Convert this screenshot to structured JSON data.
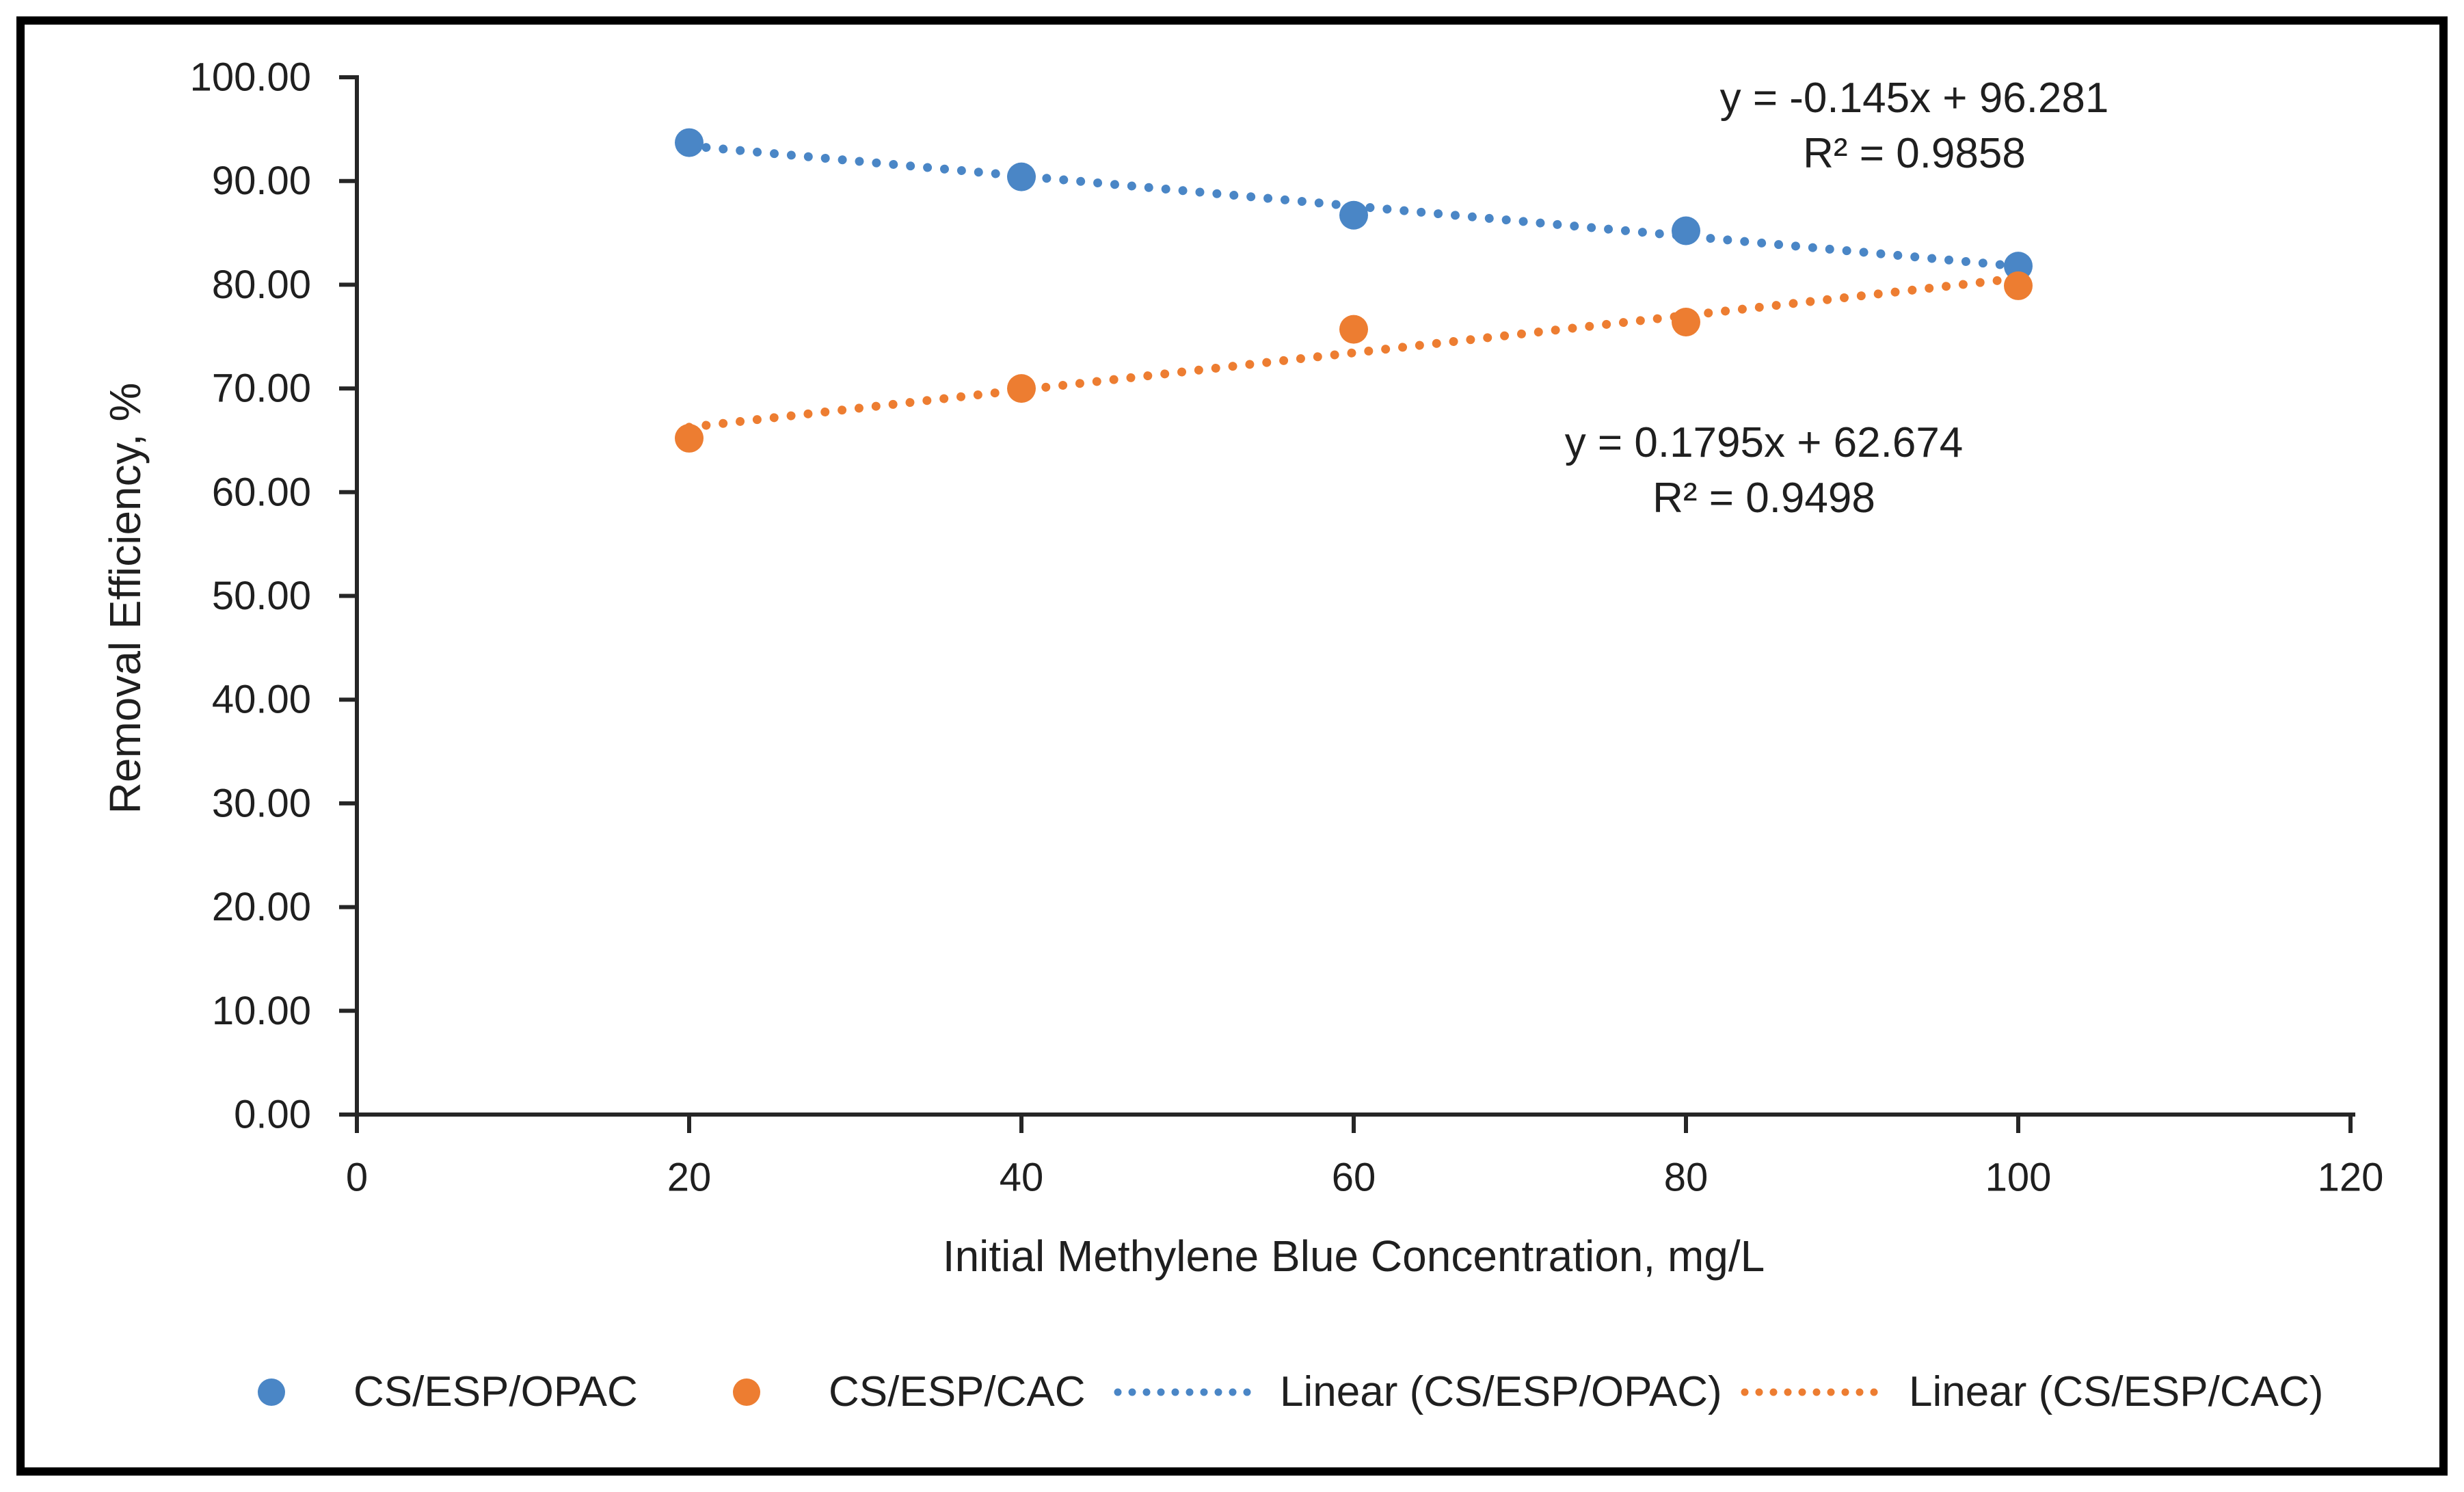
{
  "figure": {
    "background": "#ffffff",
    "border_color": "#000000",
    "text_color": "#1f1f1f",
    "axis_color": "#262626"
  },
  "chart_data": {
    "type": "scatter",
    "title": "",
    "xlabel": "Initial Methylene Blue Concentration, mg/L",
    "ylabel": "Removal Efficiency, %",
    "xlim": [
      0,
      120
    ],
    "ylim": [
      0,
      100
    ],
    "grid": false,
    "legend_position": "bottom",
    "x_ticks": [
      0,
      20,
      40,
      60,
      80,
      100,
      120
    ],
    "y_ticks": [
      "0.00",
      "10.00",
      "20.00",
      "30.00",
      "40.00",
      "50.00",
      "60.00",
      "70.00",
      "80.00",
      "90.00",
      "100.00"
    ],
    "x": [
      20,
      40,
      60,
      80,
      100
    ],
    "series": [
      {
        "name": "CS/ESP/OPAC",
        "color": "#4A86C6",
        "marker": "circle",
        "values": [
          93.7,
          90.4,
          86.7,
          85.2,
          81.8
        ],
        "trendline": {
          "type": "linear",
          "slope": -0.145,
          "intercept": 96.281,
          "r2": 0.9858,
          "equation_text": "y = -0.145x + 96.281",
          "r2_text": "R² = 0.9858",
          "legend_label": "Linear (CS/ESP/OPAC)"
        }
      },
      {
        "name": "CS/ESP/CAC",
        "color": "#ED7D31",
        "marker": "circle",
        "values": [
          65.2,
          70.0,
          75.7,
          76.4,
          79.9
        ],
        "trendline": {
          "type": "linear",
          "slope": 0.1795,
          "intercept": 62.674,
          "r2": 0.9498,
          "equation_text": "y = 0.1795x + 62.674",
          "r2_text": "R² = 0.9498",
          "legend_label": "Linear (CS/ESP/CAC)"
        }
      }
    ]
  },
  "legend": {
    "items": [
      {
        "label": "CS/ESP/OPAC",
        "marker": "circle",
        "color": "#4A86C6"
      },
      {
        "label": "CS/ESP/CAC",
        "marker": "circle",
        "color": "#ED7D31"
      },
      {
        "label": "Linear (CS/ESP/OPAC)",
        "marker": "dotted-line",
        "color": "#4A86C6"
      },
      {
        "label": "Linear (CS/ESP/CAC)",
        "marker": "dotted-line",
        "color": "#ED7D31"
      }
    ]
  }
}
